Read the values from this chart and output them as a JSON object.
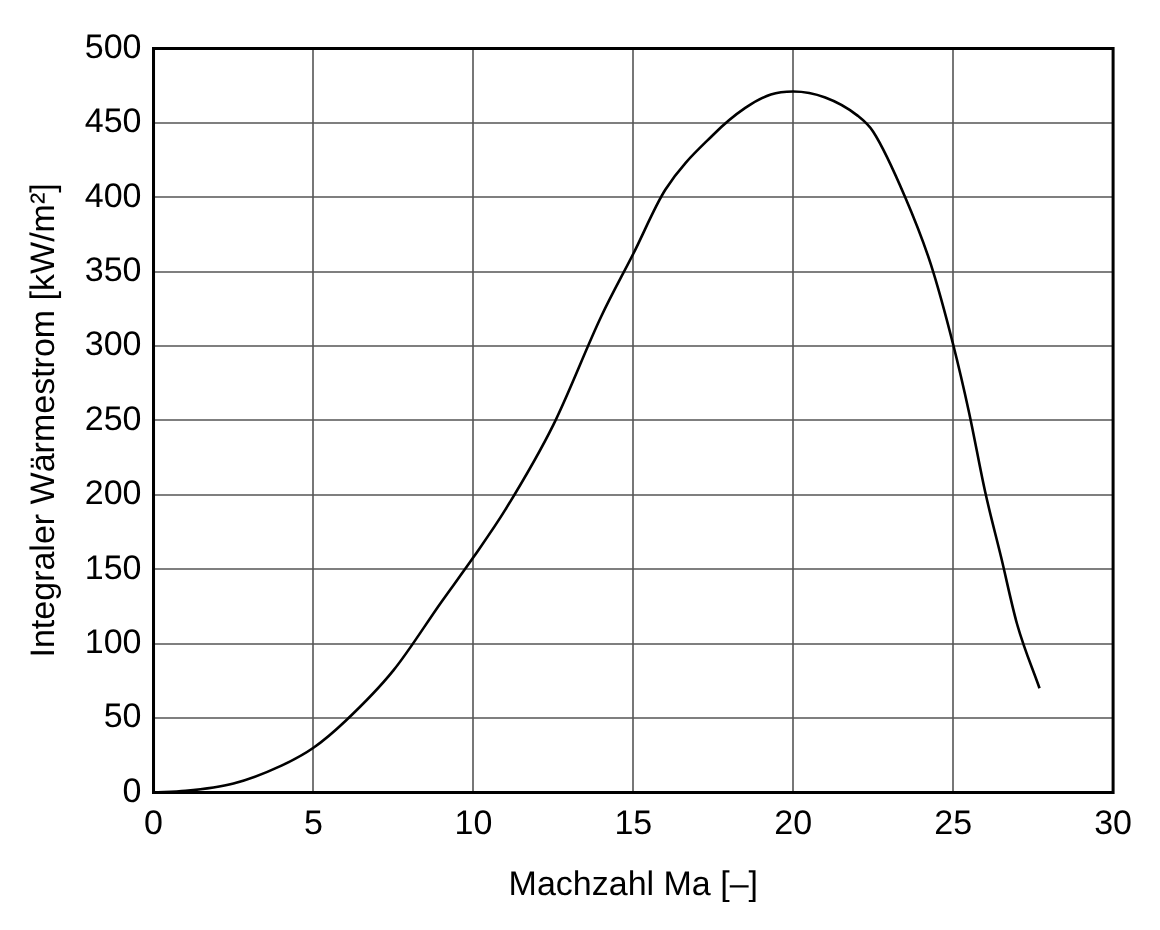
{
  "chart_data": {
    "type": "line",
    "xlabel": "Machzahl Ma [–]",
    "ylabel": "Integraler Wärmestrom [kW/m²]",
    "series": [
      {
        "color": "#000000",
        "x": [
          0,
          1,
          2.5,
          4,
          5,
          6,
          7.5,
          9,
          10,
          11,
          12.5,
          14,
          15,
          16,
          17.5,
          18.5,
          19.3,
          20,
          21,
          22,
          22.5,
          23.5,
          24.3,
          25,
          25.5,
          26,
          26.5,
          27,
          27.7
        ],
        "values": [
          0,
          1,
          6,
          18,
          30,
          48,
          82,
          128,
          158,
          190,
          247,
          320,
          362,
          405,
          442,
          460,
          469,
          471,
          467,
          455,
          444,
          400,
          355,
          301,
          255,
          202,
          158,
          113,
          70
        ]
      }
    ],
    "xlim": [
      0,
      30
    ],
    "xticks": [
      0,
      5,
      10,
      15,
      20,
      25,
      30
    ],
    "ylim": [
      0,
      500
    ],
    "yticks": [
      0,
      50,
      100,
      150,
      200,
      250,
      300,
      350,
      400,
      450,
      500
    ],
    "grid": true,
    "legend": false,
    "marker": "none",
    "line_style": "solid"
  }
}
